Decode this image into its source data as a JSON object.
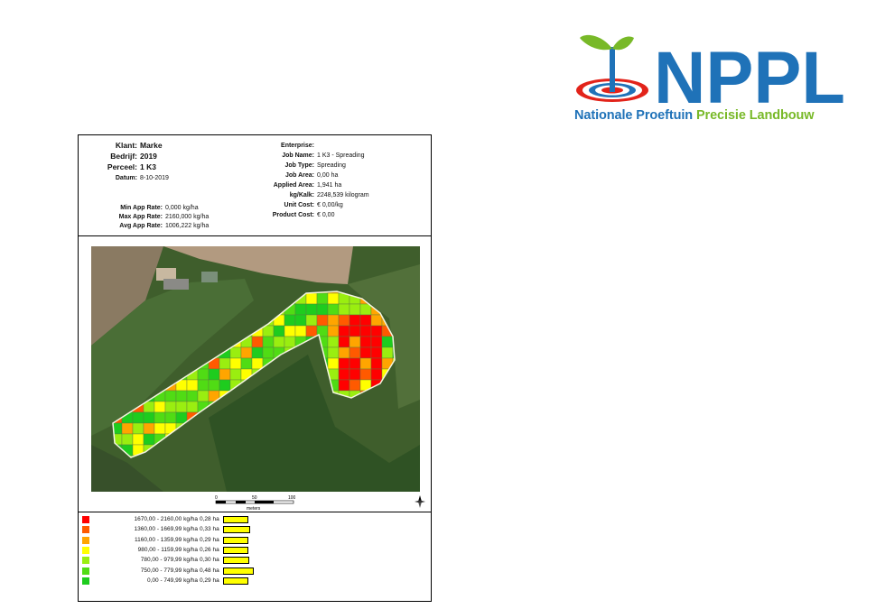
{
  "logo": {
    "brand": "NPPL",
    "line1": "Nationale Proeftuin",
    "line2": "Precisie Landbouw",
    "colors": {
      "blue": "#1f72b8",
      "green": "#78b928",
      "red": "#e2231a"
    }
  },
  "report": {
    "left_fields": [
      {
        "label": "Klant:",
        "value": "Marke",
        "emph": true
      },
      {
        "label": "Bedrijf:",
        "value": "2019",
        "emph": true
      },
      {
        "label": "Perceel:",
        "value": "1 K3",
        "emph": true
      },
      {
        "label": "Datum:",
        "value": "8-10-2019",
        "emph": false
      }
    ],
    "rate_fields": [
      {
        "label": "Min App Rate:",
        "value": "0,000 kg/ha"
      },
      {
        "label": "Max App Rate:",
        "value": "2160,000 kg/ha"
      },
      {
        "label": "Avg App Rate:",
        "value": "1006,222 kg/ha"
      }
    ],
    "right_fields": [
      {
        "label": "Enterprise:",
        "value": ""
      },
      {
        "label": "Job Name:",
        "value": "1 K3 - Spreading"
      },
      {
        "label": "Job Type:",
        "value": "Spreading"
      },
      {
        "label": "Job Area:",
        "value": "0,00 ha"
      },
      {
        "label": "Applied Area:",
        "value": "1,941 ha"
      },
      {
        "label": "kg/Kalk:",
        "value": "2248,539 kilogram"
      },
      {
        "label": "Unit Cost:",
        "value": "€ 0,00/kg"
      },
      {
        "label": "Product Cost:",
        "value": "€ 0,00"
      }
    ],
    "scale": {
      "ticks": [
        "0",
        "50",
        "100"
      ],
      "unit": "meters"
    },
    "legend": [
      {
        "range": "1670,00 - 2160,00 kg/ha",
        "area": "0,28 ha",
        "area_ha": 0.28,
        "color": "#ff0000"
      },
      {
        "range": "1360,00 - 1669,99 kg/ha",
        "area": "0,33 ha",
        "area_ha": 0.33,
        "color": "#ff5a00"
      },
      {
        "range": "1160,00 - 1359,99 kg/ha",
        "area": "0,29 ha",
        "area_ha": 0.29,
        "color": "#ffa500"
      },
      {
        "range": "980,00 - 1159,99 kg/ha",
        "area": "0,26 ha",
        "area_ha": 0.26,
        "color": "#ffff00"
      },
      {
        "range": "780,00 - 979,99 kg/ha",
        "area": "0,30 ha",
        "area_ha": 0.3,
        "color": "#9aee10"
      },
      {
        "range": "750,00 - 779,99 kg/ha",
        "area": "0,48 ha",
        "area_ha": 0.48,
        "color": "#50dc14"
      },
      {
        "range": "0,00 - 749,99 kg/ha",
        "area": "0,29 ha",
        "area_ha": 0.29,
        "color": "#1ecc1e"
      }
    ]
  }
}
